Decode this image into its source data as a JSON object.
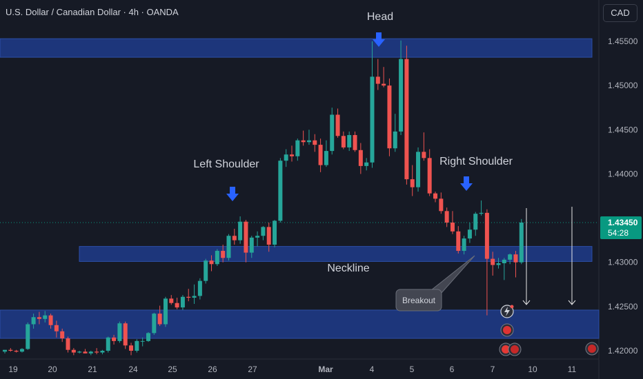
{
  "header": {
    "symbol_title": "U.S. Dollar / Canadian Dollar · 4h · OANDA",
    "currency_button": "CAD"
  },
  "colors": {
    "background": "#161a25",
    "bull": "#26a69a",
    "bear": "#ef5350",
    "zone": "#1f3d8f",
    "arrow": "#2962ff",
    "price_label": "#089981"
  },
  "chart_data": {
    "type": "candlestick",
    "ylim": [
      1.4195,
      1.4597
    ],
    "y_ticks": [
      "1.45500",
      "1.45000",
      "1.44500",
      "1.44000",
      "1.43000",
      "1.42500",
      "1.42000"
    ],
    "x_ticks": [
      "19",
      "20",
      "21",
      "24",
      "25",
      "26",
      "27",
      "Mar",
      "4",
      "5",
      "6",
      "7",
      "10",
      "11"
    ],
    "last_price": "1.43450",
    "countdown": "54:28",
    "zones": [
      {
        "name": "head-zone",
        "low": 1.4532,
        "high": 1.4553
      },
      {
        "name": "neckline-zone",
        "low": 1.4301,
        "high": 1.4318
      },
      {
        "name": "support-zone",
        "low": 1.4214,
        "high": 1.4246
      }
    ],
    "annotations": {
      "head": "Head",
      "left_shoulder": "Left Shoulder",
      "right_shoulder": "Right Shoulder",
      "neckline": "Neckline",
      "breakout": "Breakout"
    },
    "candles": [
      [
        1.4199,
        1.4201,
        1.4197,
        1.4201
      ],
      [
        1.4201,
        1.4203,
        1.4199,
        1.42
      ],
      [
        1.42,
        1.4201,
        1.4198,
        1.4199
      ],
      [
        1.4199,
        1.4203,
        1.4198,
        1.4202
      ],
      [
        1.4202,
        1.4232,
        1.4201,
        1.423
      ],
      [
        1.423,
        1.4242,
        1.4225,
        1.4238
      ],
      [
        1.4238,
        1.4244,
        1.423,
        1.4236
      ],
      [
        1.4236,
        1.4245,
        1.4232,
        1.424
      ],
      [
        1.424,
        1.4242,
        1.4225,
        1.4229
      ],
      [
        1.4229,
        1.4234,
        1.4215,
        1.4222
      ],
      [
        1.4222,
        1.4225,
        1.421,
        1.4214
      ],
      [
        1.4214,
        1.4216,
        1.4198,
        1.4201
      ],
      [
        1.4201,
        1.4203,
        1.4195,
        1.4198
      ],
      [
        1.4198,
        1.42,
        1.4197,
        1.4199
      ],
      [
        1.4199,
        1.4202,
        1.4197,
        1.4197
      ],
      [
        1.4197,
        1.42,
        1.4195,
        1.4199
      ],
      [
        1.4199,
        1.4203,
        1.4196,
        1.4198
      ],
      [
        1.4198,
        1.4201,
        1.4196,
        1.42
      ],
      [
        1.42,
        1.4216,
        1.4198,
        1.4215
      ],
      [
        1.4215,
        1.4218,
        1.4207,
        1.4211
      ],
      [
        1.4211,
        1.4233,
        1.4209,
        1.4231
      ],
      [
        1.4231,
        1.4233,
        1.4202,
        1.4206
      ],
      [
        1.4206,
        1.4209,
        1.4195,
        1.42
      ],
      [
        1.42,
        1.4213,
        1.4198,
        1.4211
      ],
      [
        1.4211,
        1.4215,
        1.4205,
        1.4211
      ],
      [
        1.4211,
        1.4221,
        1.421,
        1.422
      ],
      [
        1.422,
        1.4243,
        1.4218,
        1.4242
      ],
      [
        1.4242,
        1.4251,
        1.4228,
        1.423
      ],
      [
        1.423,
        1.4261,
        1.4227,
        1.4259
      ],
      [
        1.4259,
        1.4263,
        1.4252,
        1.4254
      ],
      [
        1.4254,
        1.426,
        1.4247,
        1.4249
      ],
      [
        1.4249,
        1.4263,
        1.4246,
        1.4261
      ],
      [
        1.4261,
        1.427,
        1.4256,
        1.426
      ],
      [
        1.426,
        1.4275,
        1.4253,
        1.4262
      ],
      [
        1.4262,
        1.4282,
        1.4258,
        1.4279
      ],
      [
        1.4279,
        1.4304,
        1.4276,
        1.4302
      ],
      [
        1.4302,
        1.4308,
        1.429,
        1.4298
      ],
      [
        1.4298,
        1.4315,
        1.4296,
        1.4313
      ],
      [
        1.4313,
        1.432,
        1.43,
        1.4305
      ],
      [
        1.4305,
        1.4332,
        1.4302,
        1.433
      ],
      [
        1.433,
        1.4338,
        1.432,
        1.4325
      ],
      [
        1.4325,
        1.4352,
        1.4321,
        1.4346
      ],
      [
        1.4346,
        1.4348,
        1.43,
        1.4311
      ],
      [
        1.4311,
        1.433,
        1.4305,
        1.4328
      ],
      [
        1.4328,
        1.4335,
        1.4318,
        1.433
      ],
      [
        1.433,
        1.4341,
        1.4325,
        1.434
      ],
      [
        1.434,
        1.4345,
        1.4312,
        1.432
      ],
      [
        1.432,
        1.4348,
        1.4317,
        1.4347
      ],
      [
        1.4347,
        1.4418,
        1.4345,
        1.4415
      ],
      [
        1.4415,
        1.4428,
        1.4408,
        1.4422
      ],
      [
        1.4422,
        1.4432,
        1.4414,
        1.442
      ],
      [
        1.442,
        1.444,
        1.4415,
        1.4438
      ],
      [
        1.4438,
        1.4449,
        1.4432,
        1.4436
      ],
      [
        1.4436,
        1.445,
        1.4433,
        1.4438
      ],
      [
        1.4438,
        1.4445,
        1.4425,
        1.4433
      ],
      [
        1.4433,
        1.444,
        1.4402,
        1.441
      ],
      [
        1.441,
        1.4438,
        1.4408,
        1.4426
      ],
      [
        1.4426,
        1.4475,
        1.4422,
        1.4467
      ],
      [
        1.4467,
        1.4474,
        1.4441,
        1.4443
      ],
      [
        1.4443,
        1.4448,
        1.4428,
        1.443
      ],
      [
        1.443,
        1.4448,
        1.4426,
        1.4444
      ],
      [
        1.4444,
        1.4448,
        1.4425,
        1.4427
      ],
      [
        1.4427,
        1.4435,
        1.44,
        1.4409
      ],
      [
        1.4409,
        1.4418,
        1.4404,
        1.4413
      ],
      [
        1.4413,
        1.455,
        1.4407,
        1.451
      ],
      [
        1.451,
        1.453,
        1.4495,
        1.4502
      ],
      [
        1.4502,
        1.4521,
        1.4498,
        1.45
      ],
      [
        1.45,
        1.4508,
        1.442,
        1.4429
      ],
      [
        1.4429,
        1.4468,
        1.4425,
        1.4448
      ],
      [
        1.4448,
        1.4551,
        1.4444,
        1.453
      ],
      [
        1.453,
        1.4545,
        1.4388,
        1.4394
      ],
      [
        1.4394,
        1.441,
        1.4375,
        1.4385
      ],
      [
        1.4385,
        1.443,
        1.438,
        1.4425
      ],
      [
        1.4425,
        1.4447,
        1.4415,
        1.4418
      ],
      [
        1.4418,
        1.4428,
        1.4375,
        1.4378
      ],
      [
        1.4378,
        1.438,
        1.4368,
        1.4372
      ],
      [
        1.4372,
        1.4379,
        1.4355,
        1.4358
      ],
      [
        1.4358,
        1.4362,
        1.434,
        1.4345
      ],
      [
        1.4345,
        1.4358,
        1.4332,
        1.4335
      ],
      [
        1.4335,
        1.4341,
        1.431,
        1.4313
      ],
      [
        1.4313,
        1.433,
        1.4309,
        1.4327
      ],
      [
        1.4327,
        1.4345,
        1.4322,
        1.4337
      ],
      [
        1.4337,
        1.4357,
        1.433,
        1.4355
      ],
      [
        1.4355,
        1.437,
        1.4353,
        1.4356
      ],
      [
        1.4356,
        1.436,
        1.424,
        1.4304
      ],
      [
        1.4304,
        1.4312,
        1.4285,
        1.4297
      ],
      [
        1.4297,
        1.4305,
        1.4293,
        1.4299
      ],
      [
        1.4299,
        1.4305,
        1.428,
        1.4303
      ],
      [
        1.4303,
        1.431,
        1.4298,
        1.4309
      ],
      [
        1.4309,
        1.4313,
        1.4283,
        1.43
      ],
      [
        1.43,
        1.4349,
        1.4298,
        1.4345
      ]
    ]
  }
}
